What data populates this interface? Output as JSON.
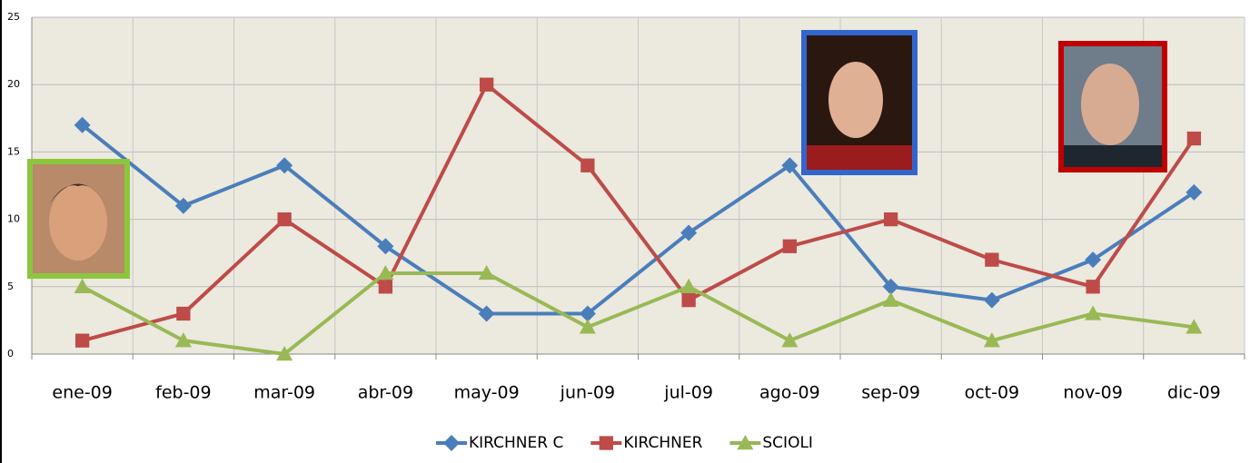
{
  "chart_data": {
    "type": "line",
    "categories": [
      "ene-09",
      "feb-09",
      "mar-09",
      "abr-09",
      "may-09",
      "jun-09",
      "jul-09",
      "ago-09",
      "sep-09",
      "oct-09",
      "nov-09",
      "dic-09"
    ],
    "series": [
      {
        "name": "KIRCHNER C",
        "color": "#4a7ebb",
        "marker": "diamond",
        "values": [
          17,
          11,
          14,
          8,
          3,
          3,
          9,
          14,
          5,
          4,
          7,
          12
        ]
      },
      {
        "name": "KIRCHNER",
        "color": "#be4b48",
        "marker": "square",
        "values": [
          1,
          3,
          10,
          5,
          20,
          14,
          4,
          8,
          10,
          7,
          5,
          16
        ]
      },
      {
        "name": "SCIOLI",
        "color": "#98b954",
        "marker": "triangle",
        "values": [
          5,
          1,
          0,
          6,
          6,
          2,
          5,
          1,
          4,
          1,
          3,
          2
        ]
      }
    ],
    "ylim": [
      0,
      25
    ],
    "yticks": [
      0,
      5,
      10,
      15,
      20,
      25
    ],
    "grid": true,
    "legend": "bottom"
  }
}
